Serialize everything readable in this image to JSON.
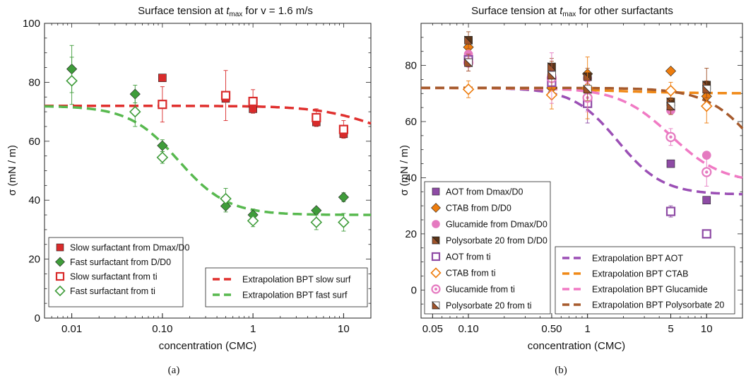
{
  "chart_data": [
    {
      "type": "scatter",
      "panel_caption": "(a)",
      "title_main": "Surface tension at ",
      "title_var": "t",
      "title_sub": "max",
      "title_rest": " for v = 1.6 m/s",
      "xlabel": "concentration (CMC)",
      "ylabel": "σ (mN / m)",
      "xscale": "log",
      "xlim": [
        0.005,
        20
      ],
      "ylim": [
        0,
        100
      ],
      "xticks": [
        {
          "v": 0.01,
          "label": "0.01"
        },
        {
          "v": 0.1,
          "label": "0.10"
        },
        {
          "v": 1,
          "label": "1"
        },
        {
          "v": 10,
          "label": "10"
        }
      ],
      "yticks": [
        {
          "v": 0,
          "label": "0"
        },
        {
          "v": 20,
          "label": "20"
        },
        {
          "v": 40,
          "label": "40"
        },
        {
          "v": 60,
          "label": "60"
        },
        {
          "v": 80,
          "label": "80"
        },
        {
          "v": 100,
          "label": "100"
        }
      ],
      "series": [
        {
          "name": "Slow surfactant from Dmax/D0",
          "marker": "square",
          "filled": true,
          "color": "#d92b2b",
          "points": [
            [
              0.1,
              81.5,
              0
            ],
            [
              0.5,
              74.5,
              0
            ],
            [
              1,
              71,
              0
            ],
            [
              5,
              66.5,
              0
            ],
            [
              10,
              62.5,
              0
            ]
          ]
        },
        {
          "name": "Fast surfactant from D/D0",
          "marker": "diamond",
          "filled": true,
          "color": "#3f9c3a",
          "points": [
            [
              0.01,
              84.5,
              8
            ],
            [
              0.05,
              76,
              3
            ],
            [
              0.1,
              58.5,
              2
            ],
            [
              0.5,
              38,
              2
            ],
            [
              1,
              35,
              2
            ],
            [
              5,
              36.5,
              1
            ],
            [
              10,
              41,
              1.5
            ]
          ]
        },
        {
          "name": "Slow surfactant from ti",
          "marker": "square",
          "filled": false,
          "color": "#d92b2b",
          "points": [
            [
              0.1,
              72.5,
              6
            ],
            [
              0.5,
              75.5,
              8.5
            ],
            [
              1,
              73.5,
              4
            ],
            [
              5,
              68,
              3
            ],
            [
              10,
              64,
              3
            ]
          ]
        },
        {
          "name": "Fast surfactant from ti",
          "marker": "diamond",
          "filled": false,
          "color": "#3f9c3a",
          "points": [
            [
              0.01,
              80.5,
              8
            ],
            [
              0.05,
              70,
              5
            ],
            [
              0.1,
              54.5,
              2
            ],
            [
              0.5,
              40.5,
              3.5
            ],
            [
              1,
              33,
              2
            ],
            [
              5,
              32.5,
              2.5
            ],
            [
              10,
              32.5,
              3
            ]
          ]
        }
      ],
      "fits": [
        {
          "name": "Extrapolation BPT slow surf",
          "color": "#e0302e",
          "s0": 72,
          "smin": 58,
          "k": 25,
          "n": 1.3
        },
        {
          "name": "Extrapolation BPT fast surf",
          "color": "#58b94f",
          "s0": 72,
          "smin": 35,
          "k": 0.15,
          "n": 1.6
        }
      ]
    },
    {
      "type": "scatter",
      "panel_caption": "(b)",
      "title_main": "Surface tension at ",
      "title_var": "t",
      "title_sub": "max",
      "title_rest": " for other surfactants",
      "xlabel": "concentration (CMC)",
      "ylabel": "σ (mN / m)",
      "xscale": "log",
      "xlim": [
        0.04,
        20
      ],
      "ylim": [
        -10,
        95
      ],
      "xticks": [
        {
          "v": 0.05,
          "label": "0.05"
        },
        {
          "v": 0.1,
          "label": "0.10"
        },
        {
          "v": 0.5,
          "label": "0.50"
        },
        {
          "v": 1,
          "label": "1"
        },
        {
          "v": 5,
          "label": "5"
        },
        {
          "v": 10,
          "label": "10"
        }
      ],
      "yticks": [
        {
          "v": 0,
          "label": "0"
        },
        {
          "v": 20,
          "label": "20"
        },
        {
          "v": 40,
          "label": "40"
        },
        {
          "v": 60,
          "label": "60"
        },
        {
          "v": 80,
          "label": "80"
        }
      ],
      "series": [
        {
          "name": "AOT from Dmax/D0",
          "marker": "square",
          "filled": true,
          "color": "#8e4ba5",
          "points": [
            [
              0.1,
              82.5,
              0
            ],
            [
              0.5,
              74.5,
              0
            ],
            [
              1,
              68,
              0
            ],
            [
              5,
              45,
              0
            ],
            [
              10,
              32,
              0
            ]
          ]
        },
        {
          "name": "CTAB from D/D0",
          "marker": "diamond",
          "filled": true,
          "color": "#ee7d0e",
          "points": [
            [
              0.1,
              86.5,
              0
            ],
            [
              0.5,
              72,
              0
            ],
            [
              1,
              77,
              0
            ],
            [
              5,
              78,
              0
            ],
            [
              10,
              69,
              0
            ]
          ]
        },
        {
          "name": "Glucamide from Dmax/D0",
          "marker": "circle",
          "filled": true,
          "color": "#e57ac0",
          "points": [
            [
              0.1,
              84,
              0
            ],
            [
              0.5,
              76.5,
              0
            ],
            [
              1,
              75.5,
              0
            ],
            [
              5,
              64,
              0
            ],
            [
              10,
              48,
              0
            ]
          ]
        },
        {
          "name": "Polysorbate 20 from D/D0",
          "marker": "triangle",
          "filled": true,
          "color": "#a0532a",
          "points": [
            [
              0.1,
              89,
              3
            ],
            [
              0.5,
              79.5,
              3
            ],
            [
              1,
              76,
              3
            ],
            [
              5,
              67,
              3
            ],
            [
              10,
              73,
              6
            ]
          ]
        },
        {
          "name": "AOT from ti",
          "marker": "square",
          "filled": false,
          "color": "#8e4ba5",
          "points": [
            [
              0.1,
              82,
              2
            ],
            [
              0.5,
              74,
              4
            ],
            [
              1,
              66.5,
              7
            ],
            [
              5,
              28,
              2
            ],
            [
              10,
              20,
              0
            ]
          ]
        },
        {
          "name": "CTAB from ti",
          "marker": "diamond",
          "filled": false,
          "color": "#ee7d0e",
          "points": [
            [
              0.1,
              71.5,
              3
            ],
            [
              0.5,
              69.5,
              5
            ],
            [
              1,
              72,
              11
            ],
            [
              5,
              71,
              3
            ],
            [
              10,
              65.5,
              6
            ]
          ]
        },
        {
          "name": "Glucamide from ti",
          "marker": "circle",
          "filled": false,
          "color": "#e57ac0",
          "points": [
            [
              0.1,
              81,
              3
            ],
            [
              0.5,
              75.5,
              9
            ],
            [
              1,
              68.5,
              5
            ],
            [
              5,
              54.5,
              3
            ],
            [
              10,
              42,
              5
            ]
          ]
        },
        {
          "name": "Polysorbate 20 from ti",
          "marker": "triangle",
          "filled": false,
          "color": "#a0532a",
          "points": [
            [
              0.1,
              81,
              3
            ],
            [
              0.5,
              76.5,
              5
            ],
            [
              1,
              71.5,
              4
            ],
            [
              5,
              65.5,
              3
            ],
            [
              10,
              71.5,
              3
            ]
          ]
        }
      ],
      "fits": [
        {
          "name": "Extrapolation BPT AOT",
          "color": "#9b4fb5",
          "s0": 72,
          "smin": 34,
          "k": 1.8,
          "n": 2.3
        },
        {
          "name": "Extrapolation BPT CTAB",
          "color": "#f08a18",
          "s0": 72,
          "smin": 70,
          "k": 1.5,
          "n": 1.2
        },
        {
          "name": "Extrapolation BPT Glucamide",
          "color": "#f07ac4",
          "s0": 72,
          "smin": 38,
          "k": 5,
          "n": 2
        },
        {
          "name": "Extrapolation BPT Polysorbate 20",
          "color": "#a65a2c",
          "s0": 72,
          "smin": 25,
          "k": 30,
          "n": 2
        }
      ]
    }
  ]
}
